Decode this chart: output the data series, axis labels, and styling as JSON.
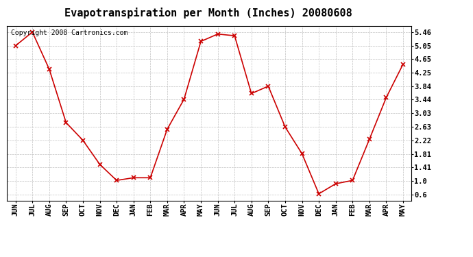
{
  "title": "Evapotranspiration per Month (Inches) 20080608",
  "copyright_text": "Copyright 2008 Cartronics.com",
  "months": [
    "JUN",
    "JUL",
    "AUG",
    "SEP",
    "OCT",
    "NOV",
    "DEC",
    "JAN",
    "FEB",
    "MAR",
    "APR",
    "MAY",
    "JUN",
    "JUL",
    "AUG",
    "SEP",
    "OCT",
    "NOV",
    "DEC",
    "JAN",
    "FEB",
    "MAR",
    "APR",
    "MAY"
  ],
  "values": [
    5.05,
    5.46,
    4.35,
    2.75,
    2.22,
    1.5,
    1.02,
    1.1,
    1.1,
    2.55,
    3.45,
    5.18,
    5.4,
    5.35,
    3.62,
    3.84,
    2.62,
    1.82,
    0.62,
    0.92,
    1.02,
    2.25,
    3.5,
    4.5
  ],
  "line_color": "#cc0000",
  "marker": "x",
  "bg_color": "#ffffff",
  "plot_bg_color": "#ffffff",
  "grid_color": "#c0c0c0",
  "yticks": [
    0.6,
    1.0,
    1.41,
    1.81,
    2.22,
    2.63,
    3.03,
    3.44,
    3.84,
    4.25,
    4.65,
    5.05,
    5.46
  ],
  "ylim": [
    0.42,
    5.65
  ],
  "title_fontsize": 11,
  "copyright_fontsize": 7,
  "tick_fontsize": 7.5
}
